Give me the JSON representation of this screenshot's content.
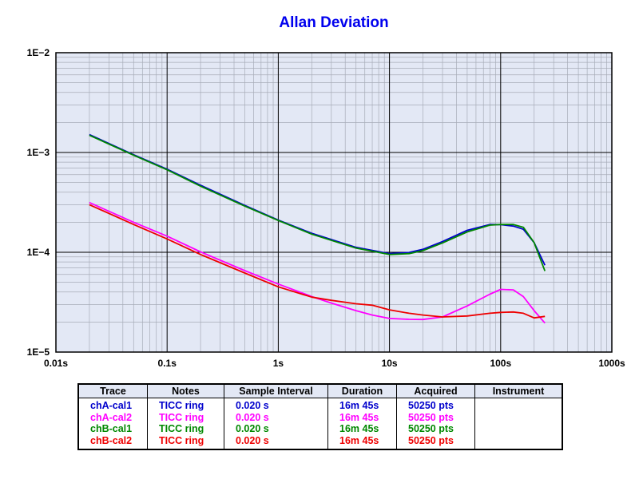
{
  "chart_data": {
    "type": "line",
    "title": "Allan Deviation",
    "title_color": "#0000ee",
    "xlabel": "",
    "ylabel": "",
    "x_scale": "log",
    "y_scale": "log",
    "xlim": [
      0.01,
      1000
    ],
    "ylim": [
      1e-05,
      0.01
    ],
    "x_tick_labels": [
      "0.01s",
      "0.1s",
      "1s",
      "10s",
      "100s",
      "1000s"
    ],
    "y_tick_labels": [
      "1E−5",
      "1E−4",
      "1E−3",
      "1E−2"
    ],
    "grid": true,
    "plot_background": "#e3e8f5",
    "series": [
      {
        "name": "chA-cal1",
        "color": "#0000cc",
        "x": [
          0.02,
          0.05,
          0.1,
          0.2,
          0.5,
          1,
          2,
          5,
          10,
          15,
          20,
          30,
          50,
          80,
          100,
          130,
          160,
          200,
          250
        ],
        "y": [
          0.00151,
          0.00095,
          0.00068,
          0.00047,
          0.000295,
          0.00021,
          0.000155,
          0.000112,
          9.7e-05,
          9.95e-05,
          0.000107,
          0.000128,
          0.000166,
          0.00019,
          0.000189,
          0.000183,
          0.00017,
          0.000125,
          7.4e-05
        ]
      },
      {
        "name": "chA-cal2",
        "color": "#ff00ff",
        "x": [
          0.02,
          0.05,
          0.1,
          0.2,
          0.5,
          1,
          2,
          3,
          5,
          7,
          10,
          15,
          20,
          30,
          50,
          80,
          100,
          130,
          160,
          200,
          250
        ],
        "y": [
          0.000315,
          0.0002,
          0.000145,
          0.000101,
          6.55e-05,
          4.8e-05,
          3.6e-05,
          3.1e-05,
          2.6e-05,
          2.35e-05,
          2.17e-05,
          2.13e-05,
          2.12e-05,
          2.25e-05,
          2.9e-05,
          3.8e-05,
          4.25e-05,
          4.2e-05,
          3.6e-05,
          2.6e-05,
          1.95e-05
        ]
      },
      {
        "name": "chB-cal1",
        "color": "#008800",
        "x": [
          0.02,
          0.05,
          0.1,
          0.2,
          0.5,
          1,
          2,
          5,
          10,
          15,
          20,
          30,
          50,
          80,
          100,
          130,
          160,
          200,
          250
        ],
        "y": [
          0.00149,
          0.00094,
          0.00067,
          0.00046,
          0.00029,
          0.000208,
          0.000152,
          0.00011,
          9.5e-05,
          9.7e-05,
          0.000104,
          0.000124,
          0.00016,
          0.000187,
          0.00019,
          0.00019,
          0.000178,
          0.000125,
          6.5e-05
        ]
      },
      {
        "name": "chB-cal2",
        "color": "#ee0000",
        "x": [
          0.02,
          0.05,
          0.1,
          0.2,
          0.5,
          1,
          2,
          3,
          5,
          7,
          10,
          15,
          20,
          30,
          50,
          80,
          100,
          130,
          160,
          200,
          250
        ],
        "y": [
          0.0003,
          0.00019,
          0.000136,
          9.5e-05,
          6.2e-05,
          4.5e-05,
          3.55e-05,
          3.3e-05,
          3.05e-05,
          2.95e-05,
          2.65e-05,
          2.45e-05,
          2.35e-05,
          2.25e-05,
          2.3e-05,
          2.45e-05,
          2.5e-05,
          2.52e-05,
          2.45e-05,
          2.2e-05,
          2.28e-05
        ]
      }
    ]
  },
  "table": {
    "headers": [
      "Trace",
      "Notes",
      "Sample Interval",
      "Duration",
      "Acquired",
      "Instrument"
    ],
    "rows": [
      {
        "trace": "chA-cal1",
        "notes": "TICC ring",
        "interval": "0.020 s",
        "duration": "16m 45s",
        "acquired": "50250 pts",
        "instrument": "",
        "color": "#0000cc"
      },
      {
        "trace": "chA-cal2",
        "notes": "TICC ring",
        "interval": "0.020 s",
        "duration": "16m 45s",
        "acquired": "50250 pts",
        "instrument": "",
        "color": "#ff00ff"
      },
      {
        "trace": "chB-cal1",
        "notes": "TICC ring",
        "interval": "0.020 s",
        "duration": "16m 45s",
        "acquired": "50250 pts",
        "instrument": "",
        "color": "#008800"
      },
      {
        "trace": "chB-cal2",
        "notes": "TICC ring",
        "interval": "0.020 s",
        "duration": "16m 45s",
        "acquired": "50250 pts",
        "instrument": "",
        "color": "#ee0000"
      }
    ]
  }
}
